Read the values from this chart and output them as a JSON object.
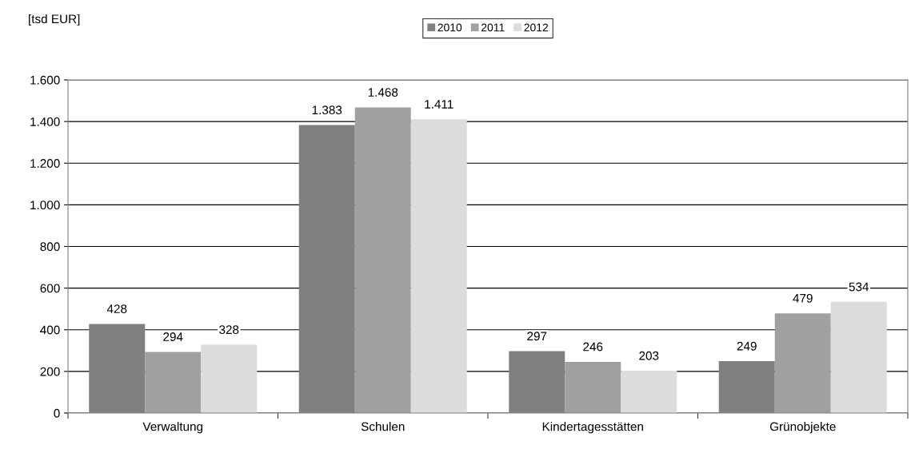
{
  "chart_data": {
    "type": "bar",
    "ylabel": "[tsd EUR]",
    "categories": [
      "Verwaltung",
      "Schulen",
      "Kindertagesstätten",
      "Grünobjekte"
    ],
    "series": [
      {
        "name": "2010",
        "color": "#808080",
        "values": [
          428,
          1383,
          297,
          249
        ],
        "value_labels": [
          "428",
          "1.383",
          "297",
          "249"
        ]
      },
      {
        "name": "2011",
        "color": "#a0a0a0",
        "values": [
          294,
          1468,
          246,
          479
        ],
        "value_labels": [
          "294",
          "1.468",
          "246",
          "479"
        ]
      },
      {
        "name": "2012",
        "color": "#dcdcdc",
        "values": [
          328,
          1411,
          203,
          534
        ],
        "value_labels": [
          "328",
          "1.411",
          "203",
          "534"
        ]
      }
    ],
    "ylim": [
      0,
      1600
    ],
    "yticks": [
      0,
      200,
      400,
      600,
      800,
      {
        "value": 1000,
        "label": "1.000"
      },
      {
        "value": 1200,
        "label": "1.200"
      },
      {
        "value": 1400,
        "label": "1.400"
      },
      {
        "value": 1600,
        "label": "1.600"
      }
    ],
    "grid": "y",
    "legend": "top"
  }
}
